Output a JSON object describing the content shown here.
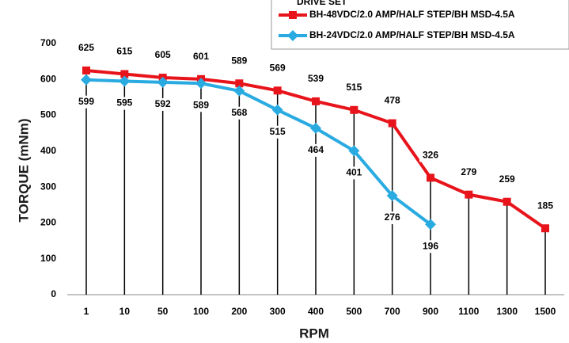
{
  "chart_data": {
    "type": "line",
    "x_label": "RPM",
    "y_label": "TORQUE (mNm)",
    "legend_title": "DRIVE SET",
    "categories": [
      "1",
      "10",
      "50",
      "100",
      "200",
      "300",
      "400",
      "500",
      "700",
      "900",
      "1100",
      "1300",
      "1500"
    ],
    "series": [
      {
        "name": "BH-48VDC/2.0 AMP/HALF STEP/BH MSD-4.5A",
        "color": "#e8141b",
        "marker": "square",
        "label_position": "above",
        "values": [
          625,
          615,
          605,
          601,
          589,
          569,
          539,
          515,
          478,
          326,
          279,
          259,
          185
        ]
      },
      {
        "name": "BH-24VDC/2.0 AMP/HALF STEP/BH MSD-4.5A",
        "color": "#29abe2",
        "marker": "diamond",
        "label_position": "below",
        "values": [
          599,
          595,
          592,
          589,
          568,
          515,
          464,
          401,
          276,
          196,
          null,
          null,
          null
        ]
      }
    ],
    "ylim": [
      0,
      700
    ],
    "yticks": [
      0,
      100,
      200,
      300,
      400,
      500,
      600,
      700
    ],
    "drop_lines": true,
    "grid": false
  }
}
